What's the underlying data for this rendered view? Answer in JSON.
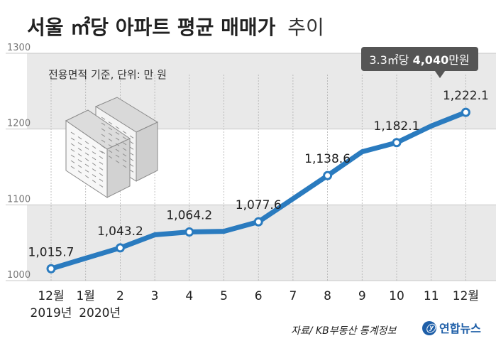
{
  "chart_data": {
    "type": "line",
    "title_bold": "서울 ㎡당 아파트 평균 매매가",
    "title_light": "추이",
    "subtitle": "전용면적 기준, 단위: 만 원",
    "x_ticks": [
      "12월",
      "1월",
      "2",
      "3",
      "4",
      "5",
      "6",
      "7",
      "8",
      "9",
      "10",
      "11",
      "12월"
    ],
    "year_labels": [
      {
        "index": 0,
        "label": "2019년"
      },
      {
        "index": 1,
        "label": "2020년"
      }
    ],
    "x_index": [
      0,
      1,
      2,
      3,
      4,
      5,
      6,
      7,
      8,
      9,
      10,
      11,
      12
    ],
    "values": [
      1015.7,
      1029.5,
      1043.2,
      1060.5,
      1064.2,
      1065.0,
      1077.6,
      1108.0,
      1138.6,
      1170.0,
      1182.1,
      1204.0,
      1222.1
    ],
    "point_labels": [
      {
        "index": 0,
        "text": "1,015.7"
      },
      {
        "index": 2,
        "text": "1,043.2"
      },
      {
        "index": 4,
        "text": "1,064.2"
      },
      {
        "index": 6,
        "text": "1,077.6"
      },
      {
        "index": 8,
        "text": "1,138.6"
      },
      {
        "index": 10,
        "text": "1,182.1"
      },
      {
        "index": 12,
        "text": "1,222.1"
      }
    ],
    "y_ticks": [
      1000,
      1100,
      1200,
      1300
    ],
    "ylim": [
      1000,
      1300
    ],
    "callout": {
      "prefix": "3.3㎡당 ",
      "bold": "4,040",
      "suffix": "만원"
    },
    "line_color": "#2a7bbf",
    "band_color": "#e9e9e9",
    "callout_color": "#555555"
  },
  "source": "자료/ KB부동산 통계정보",
  "logo": "연합뉴스"
}
